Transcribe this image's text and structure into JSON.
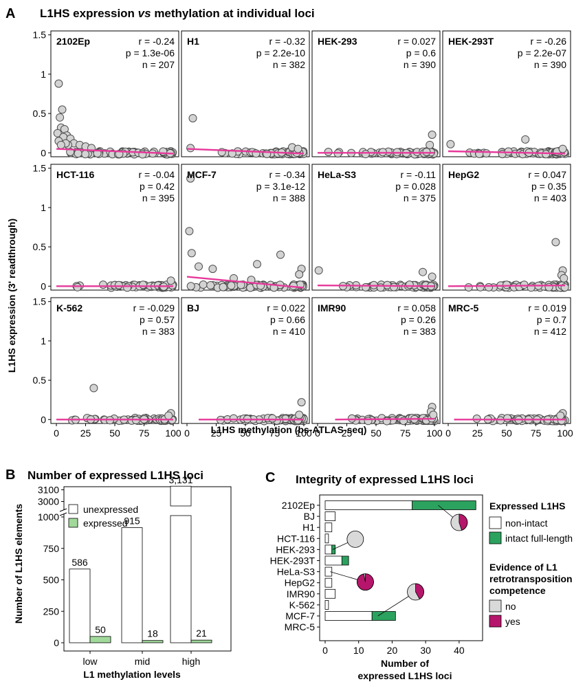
{
  "panel_a": {
    "letter": "A",
    "title_pre": "L1HS expression ",
    "title_italic": "vs",
    "title_post": " methylation at individual loci",
    "y_label": "L1HS expression (3' readthrough)",
    "x_label": "L1HS methylation (bs-ATLAS-seq)",
    "y_ticks": [
      "0",
      "0.5",
      "1",
      "1.5"
    ],
    "x_ticks": [
      "0",
      "25",
      "50",
      "75",
      "100"
    ]
  },
  "panel_b": {
    "letter": "B",
    "title": "Number of expressed L1HS loci",
    "y_label": "Number of L1HS elements",
    "x_label": "L1 methylation levels",
    "y_ticks_upper": [
      "3000",
      "3100"
    ],
    "y_ticks_lower": [
      "0",
      "250",
      "500",
      "750",
      "1000"
    ],
    "legend": [
      "unexpressed",
      "expressed"
    ]
  },
  "panel_c": {
    "letter": "C",
    "title": "Integrity of expressed L1HS loci",
    "x_label_line1": "Number of",
    "x_label_line2": "expressed L1HS loci",
    "x_ticks": [
      "0",
      "10",
      "20",
      "30",
      "40"
    ],
    "legend1_title": "Expressed L1HS",
    "legend1_items": [
      "non-intact",
      "intact full-length"
    ],
    "legend2_title_lines": [
      "Evidence of L1",
      "retrotransposition",
      "competence"
    ],
    "legend2_items": [
      "no",
      "yes"
    ]
  },
  "colors": {
    "point_fill": "#d3d3d3",
    "point_stroke": "#4d4d4d",
    "trend_line": "#e6389a",
    "expressed_green": "#2ca25f",
    "expressed_light_green": "#a1d99b",
    "yes_magenta": "#b5166b",
    "no_grey": "#d9d9d9"
  },
  "chart_data": [
    {
      "type": "scatter",
      "id": "panel-a",
      "xlim": [
        0,
        100
      ],
      "ylim": [
        -0.05,
        1.55
      ],
      "panels": [
        {
          "name": "2102Ep",
          "r": "r = -0.24",
          "p": "p = 1.3e-06",
          "n": "n = 207",
          "outliers": [
            [
              2,
              0.88
            ],
            [
              3,
              0.45
            ],
            [
              5,
              0.55
            ],
            [
              4,
              0.32
            ],
            [
              7,
              0.3
            ],
            [
              1,
              0.25
            ],
            [
              9,
              0.22
            ],
            [
              6,
              0.2
            ],
            [
              12,
              0.18
            ],
            [
              2,
              0.15
            ],
            [
              15,
              0.12
            ],
            [
              20,
              0.1
            ],
            [
              25,
              0.08
            ],
            [
              30,
              0.06
            ],
            [
              10,
              0.1
            ],
            [
              8,
              0.12
            ],
            [
              4,
              0.1
            ]
          ],
          "trend": [
            [
              0,
              0.05
            ],
            [
              100,
              -0.01
            ]
          ]
        },
        {
          "name": "H1",
          "r": "r = -0.32",
          "p": "p = 2.2e-10",
          "n": "n = 382",
          "outliers": [
            [
              5,
              0.44
            ],
            [
              3,
              0.06
            ],
            [
              90,
              0.07
            ],
            [
              95,
              0.05
            ]
          ],
          "trend": [
            [
              0,
              0.05
            ],
            [
              100,
              -0.01
            ]
          ]
        },
        {
          "name": "HEK-293",
          "r": "r = 0.027",
          "p": "p = 0.6",
          "n": "n = 390",
          "outliers": [
            [
              98,
              0.23
            ],
            [
              96,
              0.1
            ]
          ],
          "trend": [
            [
              0,
              0.0
            ],
            [
              100,
              0.0
            ]
          ]
        },
        {
          "name": "HEK-293T",
          "r": "r = -0.26",
          "p": "p = 2.2e-07",
          "n": "n = 390",
          "outliers": [
            [
              2,
              0.11
            ],
            [
              66,
              0.17
            ],
            [
              98,
              0.05
            ]
          ],
          "trend": [
            [
              0,
              0.02
            ],
            [
              100,
              -0.01
            ]
          ]
        },
        {
          "name": "HCT-116",
          "r": "r = -0.04",
          "p": "p = 0.42",
          "n": "n = 395",
          "outliers": [
            [
              98,
              0.07
            ]
          ],
          "trend": [
            [
              0,
              0.0
            ],
            [
              100,
              0.0
            ]
          ]
        },
        {
          "name": "MCF-7",
          "r": "r = -0.34",
          "p": "p = 3.1e-12",
          "n": "n = 388",
          "outliers": [
            [
              3,
              1.37
            ],
            [
              2,
              0.7
            ],
            [
              4,
              0.42
            ],
            [
              10,
              0.25
            ],
            [
              22,
              0.22
            ],
            [
              60,
              0.28
            ],
            [
              80,
              0.4
            ],
            [
              98,
              0.22
            ],
            [
              96,
              0.15
            ],
            [
              40,
              0.1
            ],
            [
              55,
              0.08
            ]
          ],
          "trend": [
            [
              0,
              0.12
            ],
            [
              100,
              -0.02
            ]
          ]
        },
        {
          "name": "HeLa-S3",
          "r": "r = -0.11",
          "p": "p = 0.028",
          "n": "n = 375",
          "outliers": [
            [
              1,
              0.2
            ],
            [
              90,
              0.18
            ],
            [
              98,
              0.12
            ]
          ],
          "trend": [
            [
              0,
              0.01
            ],
            [
              100,
              0.0
            ]
          ]
        },
        {
          "name": "HepG2",
          "r": "r = 0.047",
          "p": "p = 0.35",
          "n": "n = 403",
          "outliers": [
            [
              92,
              0.56
            ],
            [
              98,
              0.2
            ],
            [
              97,
              0.14
            ],
            [
              99,
              0.1
            ]
          ],
          "trend": [
            [
              0,
              0.0
            ],
            [
              100,
              0.01
            ]
          ]
        },
        {
          "name": "K-562",
          "r": "r = -0.029",
          "p": "p = 0.57",
          "n": "n = 383",
          "outliers": [
            [
              32,
              0.4
            ],
            [
              98,
              0.08
            ],
            [
              96,
              0.05
            ]
          ],
          "trend": [
            [
              0,
              0.0
            ],
            [
              100,
              0.0
            ]
          ]
        },
        {
          "name": "BJ",
          "r": "r = 0.022",
          "p": "p = 0.66",
          "n": "n = 410",
          "outliers": [
            [
              98,
              0.22
            ],
            [
              96,
              0.06
            ]
          ],
          "trend": [
            [
              10,
              0.0
            ],
            [
              100,
              0.0
            ]
          ]
        },
        {
          "name": "IMR90",
          "r": "r = 0.058",
          "p": "p = 0.26",
          "n": "n = 383",
          "outliers": [
            [
              98,
              0.16
            ],
            [
              97,
              0.1
            ],
            [
              99,
              0.06
            ]
          ],
          "trend": [
            [
              15,
              0.0
            ],
            [
              100,
              0.01
            ]
          ]
        },
        {
          "name": "MRC-5",
          "r": "r = 0.019",
          "p": "p = 0.7",
          "n": "n = 412",
          "outliers": [
            [
              98,
              0.08
            ],
            [
              96,
              0.05
            ]
          ],
          "trend": [
            [
              5,
              0.0
            ],
            [
              100,
              0.0
            ]
          ]
        }
      ]
    },
    {
      "type": "bar",
      "id": "panel-b",
      "categories": [
        "low",
        "mid",
        "high"
      ],
      "broken_axis": {
        "lower": [
          0,
          1000
        ],
        "upper": [
          2950,
          3150
        ]
      },
      "series": [
        {
          "name": "unexpressed",
          "values": [
            586,
            915,
            3131
          ],
          "labels": [
            "586",
            "915",
            "3,131"
          ]
        },
        {
          "name": "expressed",
          "values": [
            50,
            18,
            21
          ],
          "labels": [
            "50",
            "18",
            "21"
          ]
        }
      ]
    },
    {
      "type": "bar",
      "id": "panel-c",
      "orientation": "horizontal",
      "xlim": [
        0,
        47
      ],
      "categories": [
        "2102Ep",
        "BJ",
        "H1",
        "HCT-116",
        "HEK-293",
        "HEK-293T",
        "HeLa-S3",
        "HepG2",
        "IMR90",
        "K-562",
        "MCF-7",
        "MRC-5"
      ],
      "series": [
        {
          "name": "non-intact",
          "values": [
            26,
            3,
            2,
            1,
            2,
            5,
            2,
            2,
            3,
            1,
            14,
            0
          ]
        },
        {
          "name": "intact full-length",
          "values": [
            19,
            0,
            0,
            0,
            1,
            2,
            0,
            0,
            0,
            0,
            7,
            0
          ]
        }
      ],
      "pies": [
        {
          "category": "2102Ep",
          "yes_fraction": 0.45,
          "at_x": 40
        },
        {
          "category": "HEK-293",
          "yes_fraction": 0.0,
          "at_x": 9
        },
        {
          "category": "HeLa-S3",
          "yes_fraction": 0.97,
          "at_x": 12
        },
        {
          "category": "MCF-7",
          "yes_fraction": 0.42,
          "at_x": 27
        }
      ]
    }
  ]
}
